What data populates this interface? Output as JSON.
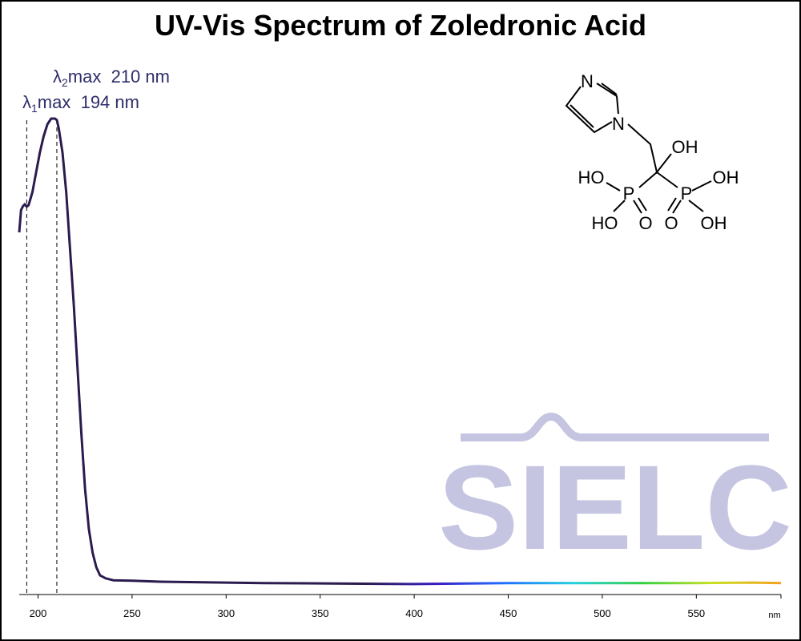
{
  "chart_data": {
    "type": "line",
    "title": "UV-Vis Spectrum of Zoledronic Acid",
    "x_label": "nm",
    "xlim": [
      190,
      595
    ],
    "xticks": [
      200,
      250,
      300,
      350,
      400,
      450,
      500,
      550
    ],
    "ylim": [
      0,
      1.05
    ],
    "series": [
      {
        "colors": [
          "#2b1b4e",
          "#2b1b4e",
          "#2b1b4e",
          "#2b1b4e",
          "#2b1b4e",
          "#2b1b4e",
          "#3a1cc0",
          "#1f6fff",
          "#22d0e0",
          "#30d040",
          "#c8e020",
          "#f5a020"
        ],
        "x": [
          190,
          191,
          192,
          193,
          194,
          195,
          197,
          199,
          201,
          203,
          205,
          207,
          209,
          210,
          211,
          213,
          215,
          217,
          219,
          221,
          223,
          225,
          227,
          229,
          231,
          233,
          236,
          240,
          250,
          265,
          300,
          320,
          400,
          450,
          500,
          550,
          580,
          595
        ],
        "values": [
          0.761,
          0.808,
          0.816,
          0.82,
          0.815,
          0.818,
          0.845,
          0.887,
          0.929,
          0.963,
          0.988,
          1.0,
          1.0,
          0.997,
          0.98,
          0.929,
          0.845,
          0.727,
          0.609,
          0.475,
          0.34,
          0.222,
          0.138,
          0.088,
          0.057,
          0.04,
          0.034,
          0.03,
          0.029,
          0.027,
          0.025,
          0.024,
          0.022,
          0.024,
          0.024,
          0.024,
          0.025,
          0.024
        ]
      }
    ],
    "annotations": [
      {
        "symbol": "λ",
        "sub": "2",
        "text": "max  210 nm",
        "x": 210
      },
      {
        "symbol": "λ",
        "sub": "1",
        "text": "max  194 nm",
        "x": 194
      }
    ],
    "watermark": "SIELC",
    "structure_labels": [
      "N",
      "N",
      "OH",
      "HO",
      "P",
      "P",
      "OH",
      "HO",
      "O",
      "O",
      "OH"
    ]
  }
}
